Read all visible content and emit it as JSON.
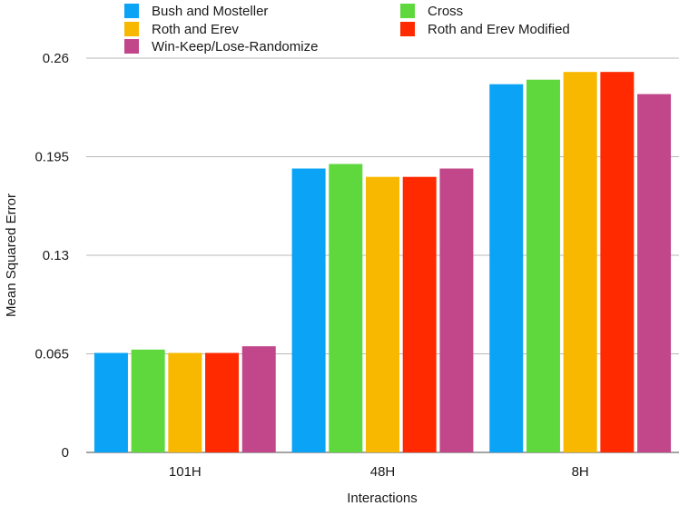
{
  "chart_data": {
    "type": "bar",
    "title": "",
    "xlabel": "Interactions",
    "ylabel": "Mean Squared Error",
    "ylim": [
      0,
      0.26
    ],
    "yticks": [
      0,
      0.065,
      0.13,
      0.195,
      0.26
    ],
    "ytick_labels": [
      "0",
      "0.065",
      "0.13",
      "0.195",
      "0.26"
    ],
    "grid": "horizontal",
    "legend_position": "top",
    "categories": [
      "101H",
      "48H",
      "8H"
    ],
    "series": [
      {
        "name": "Bush and Mosteller",
        "color": "#0aa3f5",
        "values": [
          0.0656,
          0.1872,
          0.2428
        ]
      },
      {
        "name": "Cross",
        "color": "#5fd83d",
        "values": [
          0.0678,
          0.1902,
          0.2458
        ]
      },
      {
        "name": "Roth and Erev",
        "color": "#f8b800",
        "values": [
          0.0656,
          0.1817,
          0.2509
        ]
      },
      {
        "name": "Roth and Erev Modified",
        "color": "#ff2a00",
        "values": [
          0.0656,
          0.1817,
          0.2509
        ]
      },
      {
        "name": "Win-Keep/Lose-Randomize",
        "color": "#c2478a",
        "values": [
          0.07,
          0.1872,
          0.2363
        ]
      }
    ]
  }
}
